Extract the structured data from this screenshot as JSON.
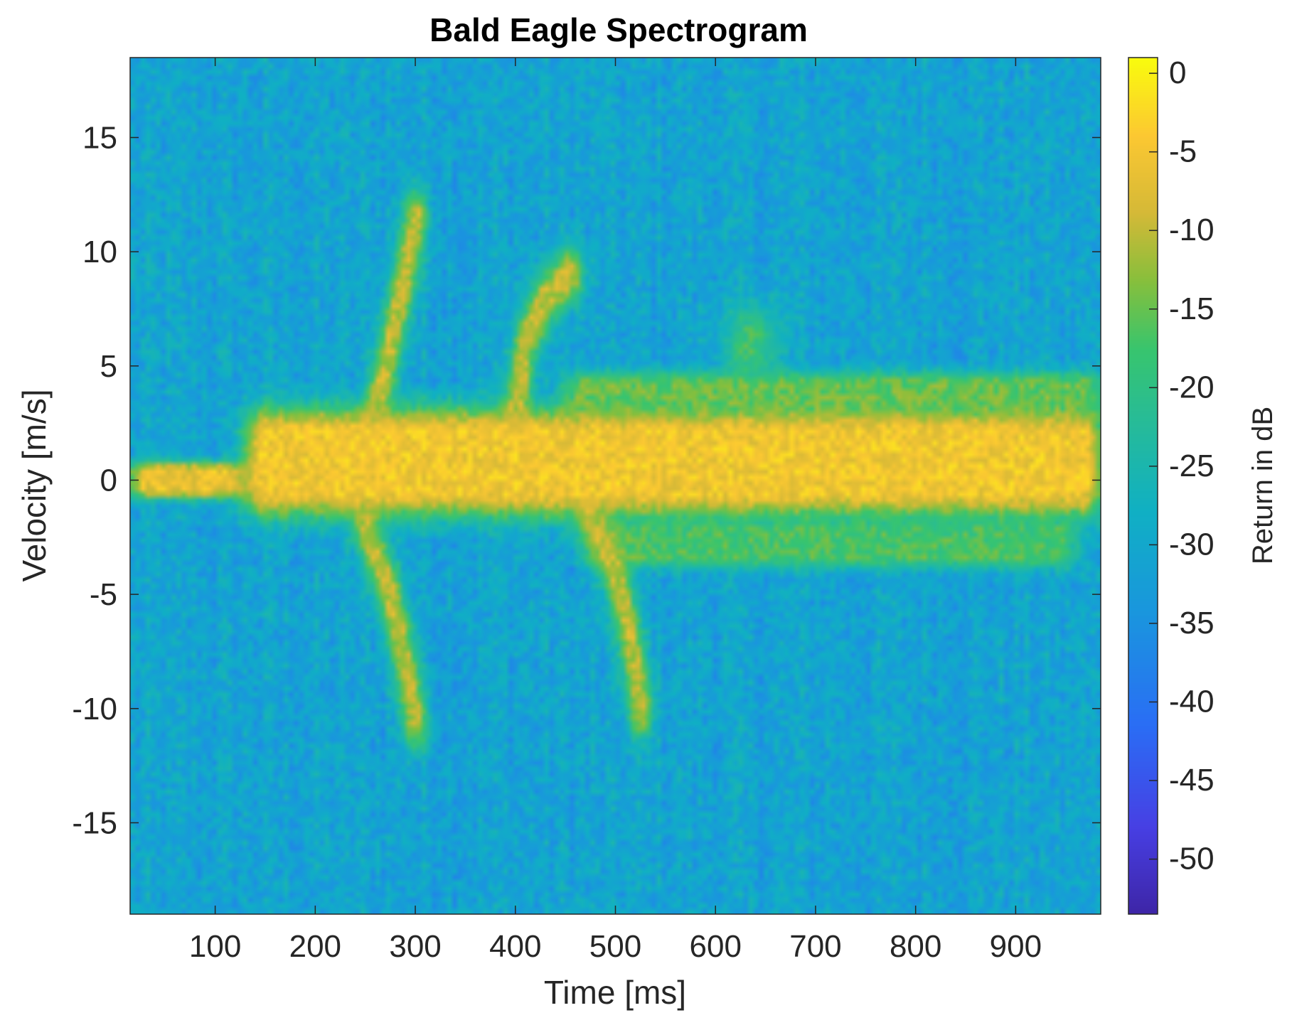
{
  "chart_data": {
    "type": "heatmap",
    "title": "Bald Eagle Spectrogram",
    "xlabel": "Time [ms]",
    "ylabel": "Velocity [m/s]",
    "colorbar_label": "Return in dB",
    "colormap": "parula",
    "xlim": [
      15,
      985
    ],
    "ylim": [
      -19,
      18.5
    ],
    "clim": [
      -53.5,
      1
    ],
    "x_ticks": [
      100,
      200,
      300,
      400,
      500,
      600,
      700,
      800,
      900
    ],
    "y_ticks": [
      -15,
      -10,
      -5,
      0,
      5,
      10,
      15
    ],
    "colorbar_ticks": [
      0,
      -5,
      -10,
      -15,
      -20,
      -25,
      -30,
      -35,
      -40,
      -45,
      -50
    ],
    "background_db": -31,
    "components": [
      {
        "feature": "body return (0 to 130 ms)",
        "t_start": 15,
        "t_end": 130,
        "velocity_center": 0,
        "velocity_halfwidth": 0.7,
        "peak_db": -6
      },
      {
        "feature": "body return (130 to 985 ms)",
        "t_start": 130,
        "t_end": 985,
        "velocity_center": 0.8,
        "velocity_halfwidth": 2.1,
        "peak_db": -5
      },
      {
        "feature": "upper envelope (450 to 985 ms)",
        "t_start": 450,
        "t_end": 985,
        "velocity_center": 3.6,
        "velocity_halfwidth": 1.0,
        "peak_db": -15
      },
      {
        "feature": "lower envelope (470 to 960 ms)",
        "t_start": 470,
        "t_end": 960,
        "velocity_center": -2.8,
        "velocity_halfwidth": 0.9,
        "peak_db": -17
      },
      {
        "feature": "upstroke wing flap 1",
        "t_path": [
          [
            255,
            2
          ],
          [
            275,
            6
          ],
          [
            290,
            9
          ],
          [
            300,
            11.5
          ]
        ],
        "peak_db": -10
      },
      {
        "feature": "downstroke wing flap 1",
        "t_path": [
          [
            250,
            -2
          ],
          [
            275,
            -5
          ],
          [
            290,
            -8
          ],
          [
            300,
            -10.5
          ]
        ],
        "peak_db": -10
      },
      {
        "feature": "upstroke wing flap 2",
        "t_path": [
          [
            400,
            3
          ],
          [
            410,
            6
          ],
          [
            430,
            8
          ],
          [
            455,
            9
          ]
        ],
        "peak_db": -10
      },
      {
        "feature": "downstroke wing flap 2",
        "t_path": [
          [
            470,
            -1
          ],
          [
            500,
            -4
          ],
          [
            515,
            -7
          ],
          [
            525,
            -10
          ]
        ],
        "peak_db": -10
      },
      {
        "feature": "small bump",
        "t": 635,
        "velocity": 6,
        "peak_db": -18
      }
    ],
    "grid": false,
    "legend": "none"
  }
}
